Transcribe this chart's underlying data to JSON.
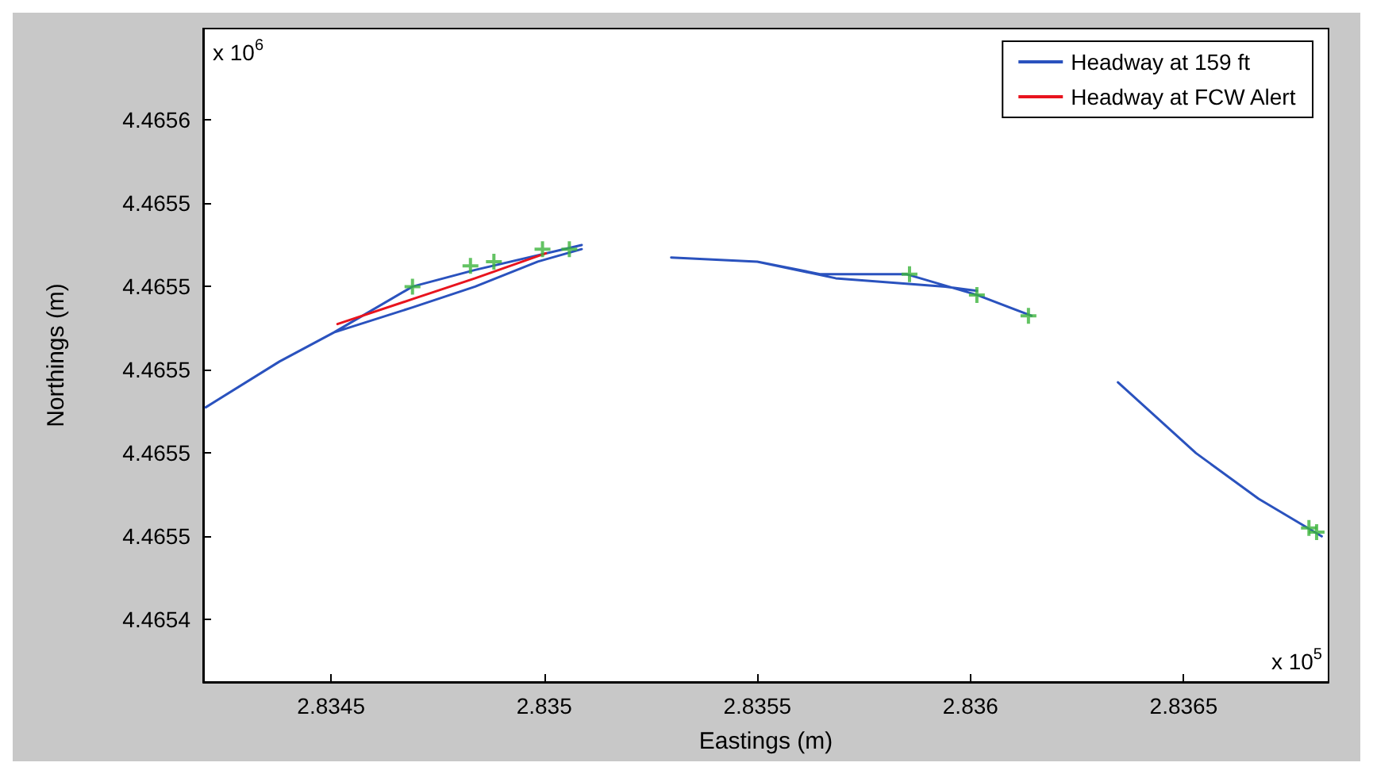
{
  "chart_data": {
    "type": "line",
    "xlabel": "Eastings (m)",
    "ylabel": "Northings (m)",
    "xlim": [
      2.8342,
      2.83684
    ],
    "xticks": [
      2.8345,
      2.835,
      2.8355,
      2.836,
      2.8365
    ],
    "ylim": [
      4.465425,
      4.465582
    ],
    "yticks": [
      {
        "value": 4.46544,
        "label": "4.4654"
      },
      {
        "value": 4.46546,
        "label": "4.4655"
      },
      {
        "value": 4.46548,
        "label": "4.4655"
      },
      {
        "value": 4.4655,
        "label": "4.4655"
      },
      {
        "value": 4.46552,
        "label": "4.4655"
      },
      {
        "value": 4.46554,
        "label": "4.4655"
      },
      {
        "value": 4.46556,
        "label": "4.4656"
      }
    ],
    "grid": false,
    "legend": "top right",
    "marker": "none",
    "line_style": "solid",
    "annotations": [
      "x 10$^{6}$",
      "x 10$^{5}$"
    ],
    "series": [
      {
        "name": "Headway at 159 ft",
        "color": "#2a52be",
        "x": [
          2.834206,
          2.834379,
          2.834507,
          2.834691,
          2.834838,
          2.835088,
          null,
          2.835298,
          2.8355,
          2.835647,
          2.835849,
          2.836015,
          2.836143,
          null,
          2.836346,
          2.836529,
          2.836676,
          2.836824,
          null,
          2.834507,
          2.834691,
          2.834838,
          2.834985,
          2.835088,
          null,
          2.8355,
          2.835684,
          2.835941,
          2.836015
        ],
        "values": [
          4.465491,
          4.465502,
          4.465509,
          4.46552,
          4.465524,
          4.46553,
          null,
          4.465527,
          4.465526,
          4.465523,
          4.465523,
          4.465518,
          4.465513,
          null,
          4.465497,
          4.46548,
          4.465469,
          4.46546,
          null,
          4.465509,
          4.465515,
          4.46552,
          4.465526,
          4.465529,
          null,
          4.465526,
          4.465522,
          4.46552,
          4.465519
        ]
      },
      {
        "name": "Headway at FCW Alert",
        "color": "#e8141e",
        "x": [
          2.834515,
          2.834691,
          2.834838,
          2.835004
        ],
        "values": [
          4.465511,
          4.465517,
          4.465522,
          4.465528
        ]
      },
      {
        "type": "scatter",
        "marker": "cross",
        "color": "#3cb43c",
        "x": [
          2.834691,
          2.834827,
          2.834882,
          2.834996,
          2.835059,
          2.835857,
          2.836015,
          2.836136,
          2.836794,
          2.836812
        ],
        "values": [
          4.46552,
          4.465525,
          4.465526,
          4.465529,
          4.465529,
          4.465523,
          4.465518,
          4.465513,
          4.465462,
          4.465461
        ]
      }
    ]
  }
}
